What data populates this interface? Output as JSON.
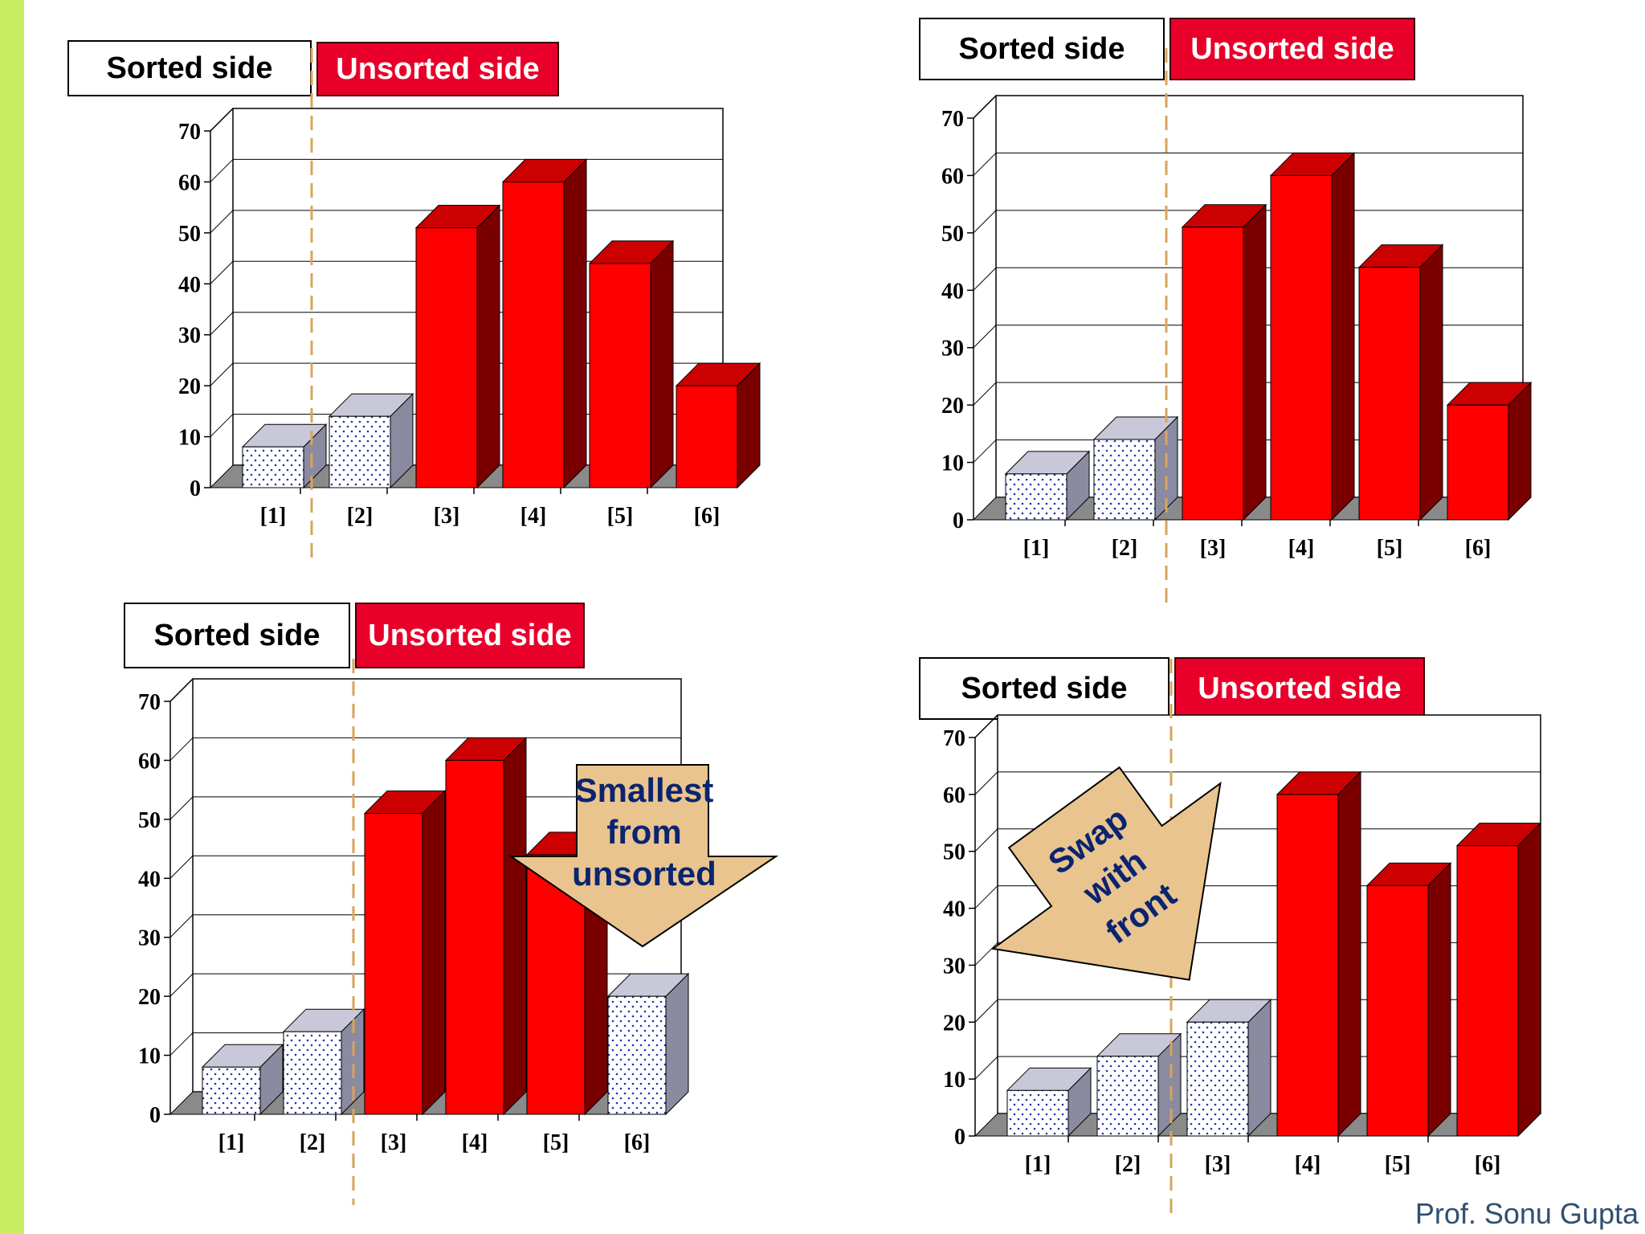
{
  "footer": "Prof. Sonu Gupta",
  "colors": {
    "sorted_fill": "#ffffff",
    "sorted_dots": "#2233aa",
    "unsorted_fill": "#ff0000",
    "unsorted_side": "#7a0000",
    "unsorted_top": "#cc0000",
    "arrow_fill": "#e9c48e",
    "divider": "#d9a45a",
    "floor": "#8a8a8a",
    "accent_green": "#c9ee63"
  },
  "panels": [
    {
      "sorted_label": "Sorted side",
      "unsorted_label": "Unsorted side",
      "arrow_text": []
    },
    {
      "sorted_label": "Sorted side",
      "unsorted_label": "Unsorted side",
      "arrow_text": []
    },
    {
      "sorted_label": "Sorted side",
      "unsorted_label": "Unsorted side",
      "arrow_text": [
        "Smallest",
        "from",
        "unsorted"
      ]
    },
    {
      "sorted_label": "Sorted side",
      "unsorted_label": "Unsorted side",
      "arrow_text": [
        "Swap",
        "with",
        "front"
      ]
    }
  ],
  "chart_data": [
    {
      "type": "bar",
      "categories": [
        "[1]",
        "[2]",
        "[3]",
        "[4]",
        "[5]",
        "[6]"
      ],
      "values": [
        8,
        14,
        51,
        60,
        44,
        20
      ],
      "sorted": [
        true,
        true,
        false,
        false,
        false,
        false
      ],
      "ylim": [
        0,
        70
      ],
      "yticks": [
        0,
        10,
        20,
        30,
        40,
        50,
        60,
        70
      ],
      "grid": true,
      "sorted_count": 1
    },
    {
      "type": "bar",
      "categories": [
        "[1]",
        "[2]",
        "[3]",
        "[4]",
        "[5]",
        "[6]"
      ],
      "values": [
        8,
        14,
        51,
        60,
        44,
        20
      ],
      "sorted": [
        true,
        true,
        false,
        false,
        false,
        false
      ],
      "ylim": [
        0,
        70
      ],
      "yticks": [
        0,
        10,
        20,
        30,
        40,
        50,
        60,
        70
      ],
      "grid": true,
      "sorted_count": 2
    },
    {
      "type": "bar",
      "categories": [
        "[1]",
        "[2]",
        "[3]",
        "[4]",
        "[5]",
        "[6]"
      ],
      "values": [
        8,
        14,
        51,
        60,
        44,
        20
      ],
      "sorted": [
        true,
        true,
        false,
        false,
        false,
        true
      ],
      "ylim": [
        0,
        70
      ],
      "yticks": [
        0,
        10,
        20,
        30,
        40,
        50,
        60,
        70
      ],
      "grid": true,
      "sorted_count": 2
    },
    {
      "type": "bar",
      "categories": [
        "[1]",
        "[2]",
        "[3]",
        "[4]",
        "[5]",
        "[6]"
      ],
      "values": [
        8,
        14,
        20,
        60,
        44,
        51
      ],
      "sorted": [
        true,
        true,
        true,
        false,
        false,
        false
      ],
      "ylim": [
        0,
        70
      ],
      "yticks": [
        0,
        10,
        20,
        30,
        40,
        50,
        60,
        70
      ],
      "grid": true,
      "sorted_count": 2
    }
  ]
}
